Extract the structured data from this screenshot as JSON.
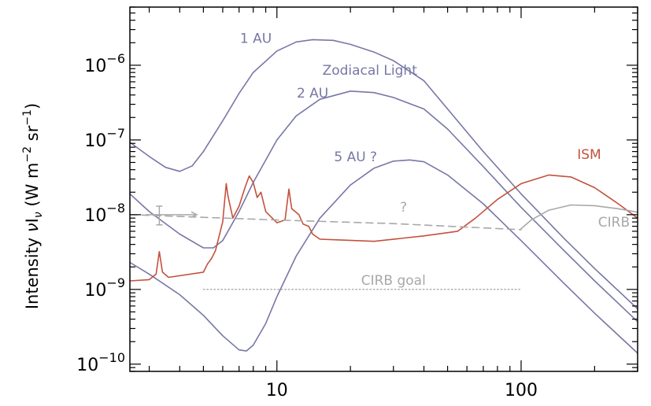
{
  "chart_data": {
    "type": "line",
    "title": "",
    "xlabel": "",
    "ylabel": "Intensity νI_ν (W m⁻² sr⁻¹)",
    "ylabel_parts": {
      "lead": "Intensity ",
      "nu": "ν",
      "I": "I",
      "sub": "ν",
      "units_open": "  (W m",
      "exp1": "−2",
      "mid": " sr",
      "exp2": "−1",
      "close": ")"
    },
    "x_scale": "log",
    "y_scale": "log",
    "xlim": [
      2.5,
      300
    ],
    "ylim": [
      8e-11,
      6e-06
    ],
    "x_ticks": [
      {
        "value": 10,
        "label": "10"
      },
      {
        "value": 100,
        "label": "100"
      }
    ],
    "y_ticks": [
      {
        "value": 1e-10,
        "base": "10",
        "exp": "−10"
      },
      {
        "value": 1e-09,
        "base": "10",
        "exp": "−9"
      },
      {
        "value": 1e-08,
        "base": "10",
        "exp": "−8"
      },
      {
        "value": 1e-07,
        "base": "10",
        "exp": "−7"
      },
      {
        "value": 1e-06,
        "base": "10",
        "exp": "−6"
      }
    ],
    "grid": false,
    "colors": {
      "zodiacal": "#7777a6",
      "ism": "#c4513c",
      "cirb": "#a8a8a8",
      "axes": "#000000"
    },
    "series": [
      {
        "id": "zodi-1au",
        "label": "1 AU",
        "color": "#7777a6",
        "style": "solid",
        "points": [
          [
            2.5,
            9.3e-08
          ],
          [
            3.0,
            6e-08
          ],
          [
            3.5,
            4.3e-08
          ],
          [
            4.0,
            3.8e-08
          ],
          [
            4.5,
            4.5e-08
          ],
          [
            5.0,
            7e-08
          ],
          [
            6.0,
            1.8e-07
          ],
          [
            7.0,
            4.2e-07
          ],
          [
            8.0,
            8e-07
          ],
          [
            10.0,
            1.55e-06
          ],
          [
            12.0,
            2.05e-06
          ],
          [
            14.0,
            2.2e-06
          ],
          [
            17.0,
            2.15e-06
          ],
          [
            20.0,
            1.9e-06
          ],
          [
            25.0,
            1.5e-06
          ],
          [
            30.0,
            1.15e-06
          ],
          [
            40.0,
            6.2e-07
          ],
          [
            50.0,
            2.6e-07
          ],
          [
            70.0,
            7e-08
          ],
          [
            100.0,
            1.9e-08
          ],
          [
            150.0,
            4.8e-09
          ],
          [
            200.0,
            1.9e-09
          ],
          [
            300.0,
            5.5e-10
          ]
        ]
      },
      {
        "id": "zodi-2au",
        "label": "2 AU",
        "color": "#7777a6",
        "style": "solid",
        "points": [
          [
            2.5,
            1.9e-08
          ],
          [
            3.0,
            1.1e-08
          ],
          [
            4.0,
            5.5e-09
          ],
          [
            5.0,
            3.6e-09
          ],
          [
            5.5,
            3.6e-09
          ],
          [
            6.0,
            4.5e-09
          ],
          [
            7.0,
            1.1e-08
          ],
          [
            8.0,
            2.7e-08
          ],
          [
            10.0,
            1e-07
          ],
          [
            12.0,
            2.1e-07
          ],
          [
            15.0,
            3.5e-07
          ],
          [
            20.0,
            4.5e-07
          ],
          [
            25.0,
            4.3e-07
          ],
          [
            30.0,
            3.7e-07
          ],
          [
            40.0,
            2.6e-07
          ],
          [
            50.0,
            1.4e-07
          ],
          [
            70.0,
            4.4e-08
          ],
          [
            100.0,
            1.25e-08
          ],
          [
            150.0,
            3.3e-09
          ],
          [
            200.0,
            1.3e-09
          ],
          [
            300.0,
            3.7e-10
          ]
        ]
      },
      {
        "id": "zodi-5au",
        "label": "5 AU ?",
        "color": "#7777a6",
        "style": "solid",
        "points": [
          [
            2.5,
            2.3e-09
          ],
          [
            3.0,
            1.6e-09
          ],
          [
            4.0,
            8.5e-10
          ],
          [
            5.0,
            4.5e-10
          ],
          [
            6.0,
            2.4e-10
          ],
          [
            7.0,
            1.55e-10
          ],
          [
            7.5,
            1.5e-10
          ],
          [
            8.0,
            1.8e-10
          ],
          [
            9.0,
            3.5e-10
          ],
          [
            10.0,
            8e-10
          ],
          [
            12.0,
            2.8e-09
          ],
          [
            15.0,
            9e-09
          ],
          [
            20.0,
            2.5e-08
          ],
          [
            25.0,
            4.2e-08
          ],
          [
            30.0,
            5.2e-08
          ],
          [
            35.0,
            5.4e-08
          ],
          [
            40.0,
            5.1e-08
          ],
          [
            50.0,
            3.4e-08
          ],
          [
            70.0,
            1.4e-08
          ],
          [
            100.0,
            4.5e-09
          ],
          [
            150.0,
            1.2e-09
          ],
          [
            200.0,
            4.8e-10
          ],
          [
            300.0,
            1.4e-10
          ]
        ]
      },
      {
        "id": "ism",
        "label": "ISM",
        "color": "#c4513c",
        "style": "solid",
        "points": [
          [
            2.5,
            1.3e-09
          ],
          [
            3.0,
            1.35e-09
          ],
          [
            3.2,
            1.6e-09
          ],
          [
            3.3,
            3.2e-09
          ],
          [
            3.4,
            1.7e-09
          ],
          [
            3.6,
            1.45e-09
          ],
          [
            5.0,
            1.7e-09
          ],
          [
            5.2,
            2.2e-09
          ],
          [
            5.4,
            2.6e-09
          ],
          [
            5.6,
            3.3e-09
          ],
          [
            6.0,
            8e-09
          ],
          [
            6.2,
            2.6e-08
          ],
          [
            6.3,
            1.8e-08
          ],
          [
            6.6,
            9e-09
          ],
          [
            7.0,
            1.3e-08
          ],
          [
            7.4,
            2.3e-08
          ],
          [
            7.7,
            3.3e-08
          ],
          [
            8.0,
            2.7e-08
          ],
          [
            8.3,
            1.7e-08
          ],
          [
            8.6,
            2e-08
          ],
          [
            9.0,
            1.1e-08
          ],
          [
            10.0,
            7.8e-09
          ],
          [
            10.8,
            8.5e-09
          ],
          [
            11.2,
            2.2e-08
          ],
          [
            11.5,
            1.2e-08
          ],
          [
            12.3,
            1e-08
          ],
          [
            12.8,
            7.5e-09
          ],
          [
            13.5,
            7e-09
          ],
          [
            14.0,
            5.5e-09
          ],
          [
            15.0,
            4.7e-09
          ],
          [
            18.0,
            4.6e-09
          ],
          [
            25.0,
            4.4e-09
          ],
          [
            40.0,
            5.2e-09
          ],
          [
            55.0,
            6e-09
          ],
          [
            65.0,
            9e-09
          ],
          [
            80.0,
            1.6e-08
          ],
          [
            100.0,
            2.6e-08
          ],
          [
            130.0,
            3.4e-08
          ],
          [
            160.0,
            3.2e-08
          ],
          [
            200.0,
            2.3e-08
          ],
          [
            250.0,
            1.4e-08
          ],
          [
            300.0,
            9e-09
          ]
        ]
      },
      {
        "id": "cirb",
        "label": "CIRB",
        "color": "#a8a8a8",
        "style": "solid",
        "points": [
          [
            100.0,
            6.5e-09
          ],
          [
            110.0,
            8.5e-09
          ],
          [
            130.0,
            1.15e-08
          ],
          [
            160.0,
            1.35e-08
          ],
          [
            200.0,
            1.32e-08
          ],
          [
            250.0,
            1.2e-08
          ],
          [
            300.0,
            1.08e-08
          ]
        ]
      },
      {
        "id": "cirb-est",
        "label": "?",
        "color": "#a8a8a8",
        "style": "dashed",
        "points": [
          [
            2.5,
            1e-08
          ],
          [
            10.0,
            8.5e-09
          ],
          [
            30.0,
            7.6e-09
          ],
          [
            100.0,
            6.3e-09
          ]
        ]
      },
      {
        "id": "cirb-goal",
        "label": "CIRB goal",
        "color": "#a8a8a8",
        "style": "dotted",
        "points": [
          [
            5.0,
            1e-09
          ],
          [
            100.0,
            1e-09
          ]
        ]
      }
    ],
    "error_bar": {
      "x": 3.3,
      "y": 1e-08,
      "y_low": 7.3e-09,
      "y_high": 1.3e-08,
      "x_low": 2.9,
      "x_high": 4.7,
      "color": "#a8a8a8"
    },
    "annotations": [
      {
        "text": "1 AU",
        "x": 8.2,
        "y": 2e-06,
        "color": "#7777a6",
        "anchor": "middle"
      },
      {
        "text": "Zodiacal Light",
        "x": 24.0,
        "y": 7.5e-07,
        "color": "#7777a6",
        "anchor": "middle"
      },
      {
        "text": "2 AU",
        "x": 14.0,
        "y": 3.7e-07,
        "color": "#7777a6",
        "anchor": "middle"
      },
      {
        "text": "5 AU ?",
        "x": 21.0,
        "y": 5.2e-08,
        "color": "#7777a6",
        "anchor": "middle"
      },
      {
        "text": "ISM",
        "x": 190.0,
        "y": 5.6e-08,
        "color": "#c4513c",
        "anchor": "middle"
      },
      {
        "text": "?",
        "x": 33.0,
        "y": 1.1e-08,
        "color": "#a8a8a8",
        "anchor": "middle"
      },
      {
        "text": "CIRB",
        "x": 240.0,
        "y": 6.9e-09,
        "color": "#a8a8a8",
        "anchor": "middle"
      },
      {
        "text": "CIRB goal",
        "x": 30.0,
        "y": 1.15e-09,
        "color": "#a8a8a8",
        "anchor": "middle"
      }
    ]
  }
}
